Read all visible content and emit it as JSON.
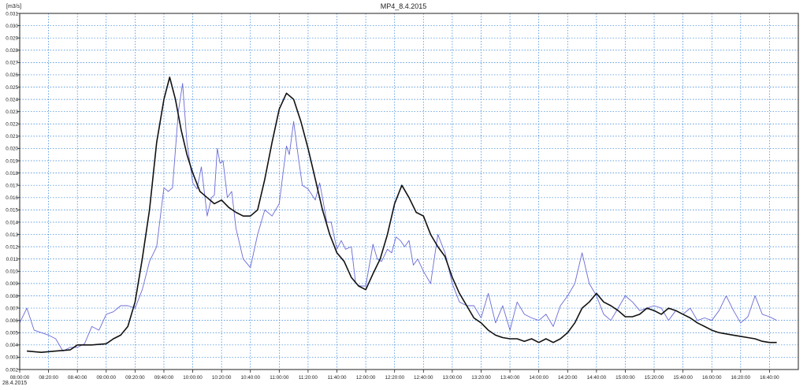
{
  "chart_data": {
    "type": "line",
    "title": "MP4_8.4.2015",
    "ylabel": "[m3/s]",
    "xlabel": "",
    "ylim": [
      0.002,
      0.031
    ],
    "y_ticks": [
      "0.002",
      "0.003",
      "0.004",
      "0.005",
      "0.006",
      "0.007",
      "0.008",
      "0.009",
      "0.010",
      "0.011",
      "0.012",
      "0.013",
      "0.014",
      "0.015",
      "0.016",
      "0.017",
      "0.018",
      "0.019",
      "0.020",
      "0.021",
      "0.022",
      "0.023",
      "0.024",
      "0.025",
      "0.026",
      "0.027",
      "0.028",
      "0.029",
      "0.030",
      "0.031"
    ],
    "xlim_minutes": [
      480,
      1020
    ],
    "x_ticks": [
      "08:00:00",
      "08:20:00",
      "08:40:00",
      "09:00:00",
      "09:20:00",
      "09:40:00",
      "10:00:00",
      "10:20:00",
      "10:40:00",
      "11:00:00",
      "11:20:00",
      "11:40:00",
      "12:00:00",
      "12:20:00",
      "12:40:00",
      "13:00:00",
      "13:20:00",
      "13:40:00",
      "14:00:00",
      "14:20:00",
      "14:40:00",
      "15:00:00",
      "15:20:00",
      "15:40:00",
      "16:00:00",
      "16:20:00",
      "16:40:00"
    ],
    "x_date_label": "28.4.2015",
    "grid": true,
    "series": [
      {
        "color": "#6a6ad6",
        "points": [
          [
            "08:00",
            0.0058
          ],
          [
            "08:05",
            0.007
          ],
          [
            "08:10",
            0.0052
          ],
          [
            "08:15",
            0.005
          ],
          [
            "08:20",
            0.0048
          ],
          [
            "08:25",
            0.0045
          ],
          [
            "08:30",
            0.0035
          ],
          [
            "08:35",
            0.0038
          ],
          [
            "08:40",
            0.0038
          ],
          [
            "08:45",
            0.0041
          ],
          [
            "08:50",
            0.0055
          ],
          [
            "08:55",
            0.0052
          ],
          [
            "09:00",
            0.0065
          ],
          [
            "09:05",
            0.0067
          ],
          [
            "09:10",
            0.0072
          ],
          [
            "09:15",
            0.0072
          ],
          [
            "09:20",
            0.007
          ],
          [
            "09:25",
            0.0085
          ],
          [
            "09:30",
            0.0108
          ],
          [
            "09:35",
            0.012
          ],
          [
            "09:40",
            0.0168
          ],
          [
            "09:43",
            0.0165
          ],
          [
            "09:46",
            0.0168
          ],
          [
            "09:50",
            0.023
          ],
          [
            "09:53",
            0.0253
          ],
          [
            "09:56",
            0.0205
          ],
          [
            "10:00",
            0.0172
          ],
          [
            "10:03",
            0.0167
          ],
          [
            "10:06",
            0.0185
          ],
          [
            "10:10",
            0.0145
          ],
          [
            "10:13",
            0.016
          ],
          [
            "10:15",
            0.0162
          ],
          [
            "10:17",
            0.02
          ],
          [
            "10:19",
            0.0188
          ],
          [
            "10:21",
            0.019
          ],
          [
            "10:24",
            0.016
          ],
          [
            "10:27",
            0.0165
          ],
          [
            "10:30",
            0.0135
          ],
          [
            "10:35",
            0.011
          ],
          [
            "10:40",
            0.0103
          ],
          [
            "10:45",
            0.013
          ],
          [
            "10:50",
            0.015
          ],
          [
            "10:55",
            0.0145
          ],
          [
            "11:00",
            0.0155
          ],
          [
            "11:05",
            0.0202
          ],
          [
            "11:07",
            0.0195
          ],
          [
            "11:10",
            0.0222
          ],
          [
            "11:13",
            0.0195
          ],
          [
            "11:16",
            0.017
          ],
          [
            "11:20",
            0.0167
          ],
          [
            "11:25",
            0.0158
          ],
          [
            "11:28",
            0.0172
          ],
          [
            "11:30",
            0.016
          ],
          [
            "11:33",
            0.014
          ],
          [
            "11:36",
            0.014
          ],
          [
            "11:40",
            0.0118
          ],
          [
            "11:43",
            0.0125
          ],
          [
            "11:46",
            0.0118
          ],
          [
            "11:50",
            0.012
          ],
          [
            "11:53",
            0.009
          ],
          [
            "11:56",
            0.0088
          ],
          [
            "12:00",
            0.0088
          ],
          [
            "12:05",
            0.0122
          ],
          [
            "12:08",
            0.011
          ],
          [
            "12:11",
            0.0108
          ],
          [
            "12:15",
            0.0118
          ],
          [
            "12:18",
            0.0115
          ],
          [
            "12:21",
            0.0128
          ],
          [
            "12:24",
            0.0125
          ],
          [
            "12:27",
            0.012
          ],
          [
            "12:30",
            0.0125
          ],
          [
            "12:33",
            0.0105
          ],
          [
            "12:36",
            0.011
          ],
          [
            "12:40",
            0.01
          ],
          [
            "12:45",
            0.009
          ],
          [
            "12:50",
            0.013
          ],
          [
            "12:55",
            0.0115
          ],
          [
            "13:00",
            0.009
          ],
          [
            "13:05",
            0.0075
          ],
          [
            "13:10",
            0.0072
          ],
          [
            "13:15",
            0.0072
          ],
          [
            "13:20",
            0.0062
          ],
          [
            "13:25",
            0.0082
          ],
          [
            "13:30",
            0.0058
          ],
          [
            "13:35",
            0.0072
          ],
          [
            "13:40",
            0.0052
          ],
          [
            "13:45",
            0.0075
          ],
          [
            "13:50",
            0.0065
          ],
          [
            "13:55",
            0.0062
          ],
          [
            "14:00",
            0.006
          ],
          [
            "14:05",
            0.0065
          ],
          [
            "14:10",
            0.0055
          ],
          [
            "14:15",
            0.0072
          ],
          [
            "14:20",
            0.008
          ],
          [
            "14:25",
            0.009
          ],
          [
            "14:30",
            0.0115
          ],
          [
            "14:35",
            0.009
          ],
          [
            "14:40",
            0.008
          ],
          [
            "14:45",
            0.0065
          ],
          [
            "14:50",
            0.006
          ],
          [
            "14:55",
            0.007
          ],
          [
            "15:00",
            0.008
          ],
          [
            "15:05",
            0.0075
          ],
          [
            "15:10",
            0.0068
          ],
          [
            "15:15",
            0.007
          ],
          [
            "15:20",
            0.0072
          ],
          [
            "15:25",
            0.007
          ],
          [
            "15:30",
            0.006
          ],
          [
            "15:35",
            0.0068
          ],
          [
            "15:40",
            0.0065
          ],
          [
            "15:45",
            0.007
          ],
          [
            "15:50",
            0.006
          ],
          [
            "15:55",
            0.0062
          ],
          [
            "16:00",
            0.006
          ],
          [
            "16:05",
            0.0068
          ],
          [
            "16:10",
            0.008
          ],
          [
            "16:15",
            0.0068
          ],
          [
            "16:20",
            0.0058
          ],
          [
            "16:25",
            0.0063
          ],
          [
            "16:30",
            0.008
          ],
          [
            "16:35",
            0.0065
          ],
          [
            "16:40",
            0.0063
          ],
          [
            "16:45",
            0.006
          ]
        ]
      },
      {
        "color": "#111111",
        "points": [
          [
            "08:05",
            0.0035
          ],
          [
            "08:15",
            0.0034
          ],
          [
            "08:25",
            0.0035
          ],
          [
            "08:35",
            0.0036
          ],
          [
            "08:40",
            0.004
          ],
          [
            "08:50",
            0.004
          ],
          [
            "09:00",
            0.0041
          ],
          [
            "09:05",
            0.0045
          ],
          [
            "09:10",
            0.0048
          ],
          [
            "09:15",
            0.0055
          ],
          [
            "09:20",
            0.0075
          ],
          [
            "09:25",
            0.011
          ],
          [
            "09:30",
            0.015
          ],
          [
            "09:35",
            0.0205
          ],
          [
            "09:40",
            0.024
          ],
          [
            "09:44",
            0.0258
          ],
          [
            "09:48",
            0.024
          ],
          [
            "09:52",
            0.0215
          ],
          [
            "09:56",
            0.0195
          ],
          [
            "10:00",
            0.018
          ],
          [
            "10:05",
            0.0165
          ],
          [
            "10:10",
            0.016
          ],
          [
            "10:15",
            0.0155
          ],
          [
            "10:20",
            0.0158
          ],
          [
            "10:25",
            0.0152
          ],
          [
            "10:30",
            0.0148
          ],
          [
            "10:35",
            0.0145
          ],
          [
            "10:40",
            0.0145
          ],
          [
            "10:45",
            0.015
          ],
          [
            "10:50",
            0.0175
          ],
          [
            "10:55",
            0.0205
          ],
          [
            "11:00",
            0.0232
          ],
          [
            "11:05",
            0.0245
          ],
          [
            "11:10",
            0.024
          ],
          [
            "11:15",
            0.0222
          ],
          [
            "11:20",
            0.02
          ],
          [
            "11:25",
            0.0175
          ],
          [
            "11:30",
            0.015
          ],
          [
            "11:35",
            0.013
          ],
          [
            "11:40",
            0.0115
          ],
          [
            "11:45",
            0.0108
          ],
          [
            "11:50",
            0.0095
          ],
          [
            "11:55",
            0.0088
          ],
          [
            "12:00",
            0.0085
          ],
          [
            "12:05",
            0.0098
          ],
          [
            "12:10",
            0.011
          ],
          [
            "12:15",
            0.013
          ],
          [
            "12:20",
            0.0155
          ],
          [
            "12:25",
            0.017
          ],
          [
            "12:30",
            0.016
          ],
          [
            "12:35",
            0.0148
          ],
          [
            "12:40",
            0.0145
          ],
          [
            "12:45",
            0.013
          ],
          [
            "12:50",
            0.012
          ],
          [
            "12:55",
            0.0112
          ],
          [
            "13:00",
            0.0095
          ],
          [
            "13:05",
            0.0082
          ],
          [
            "13:10",
            0.0072
          ],
          [
            "13:15",
            0.0062
          ],
          [
            "13:20",
            0.0058
          ],
          [
            "13:25",
            0.0052
          ],
          [
            "13:30",
            0.0048
          ],
          [
            "13:35",
            0.0046
          ],
          [
            "13:40",
            0.0045
          ],
          [
            "13:45",
            0.0045
          ],
          [
            "13:50",
            0.0043
          ],
          [
            "13:55",
            0.0045
          ],
          [
            "14:00",
            0.0042
          ],
          [
            "14:05",
            0.0045
          ],
          [
            "14:10",
            0.0042
          ],
          [
            "14:15",
            0.0045
          ],
          [
            "14:20",
            0.005
          ],
          [
            "14:25",
            0.0058
          ],
          [
            "14:30",
            0.007
          ],
          [
            "14:35",
            0.0075
          ],
          [
            "14:40",
            0.0082
          ],
          [
            "14:45",
            0.0075
          ],
          [
            "14:50",
            0.0072
          ],
          [
            "14:55",
            0.0068
          ],
          [
            "15:00",
            0.0063
          ],
          [
            "15:05",
            0.0063
          ],
          [
            "15:10",
            0.0065
          ],
          [
            "15:15",
            0.007
          ],
          [
            "15:20",
            0.0068
          ],
          [
            "15:25",
            0.0065
          ],
          [
            "15:30",
            0.007
          ],
          [
            "15:35",
            0.0068
          ],
          [
            "15:40",
            0.0065
          ],
          [
            "15:45",
            0.0062
          ],
          [
            "15:50",
            0.0058
          ],
          [
            "15:55",
            0.0055
          ],
          [
            "16:00",
            0.0052
          ],
          [
            "16:05",
            0.005
          ],
          [
            "16:10",
            0.0049
          ],
          [
            "16:15",
            0.0048
          ],
          [
            "16:20",
            0.0047
          ],
          [
            "16:25",
            0.0046
          ],
          [
            "16:30",
            0.0045
          ],
          [
            "16:35",
            0.0043
          ],
          [
            "16:40",
            0.0042
          ],
          [
            "16:45",
            0.0042
          ]
        ]
      }
    ]
  }
}
